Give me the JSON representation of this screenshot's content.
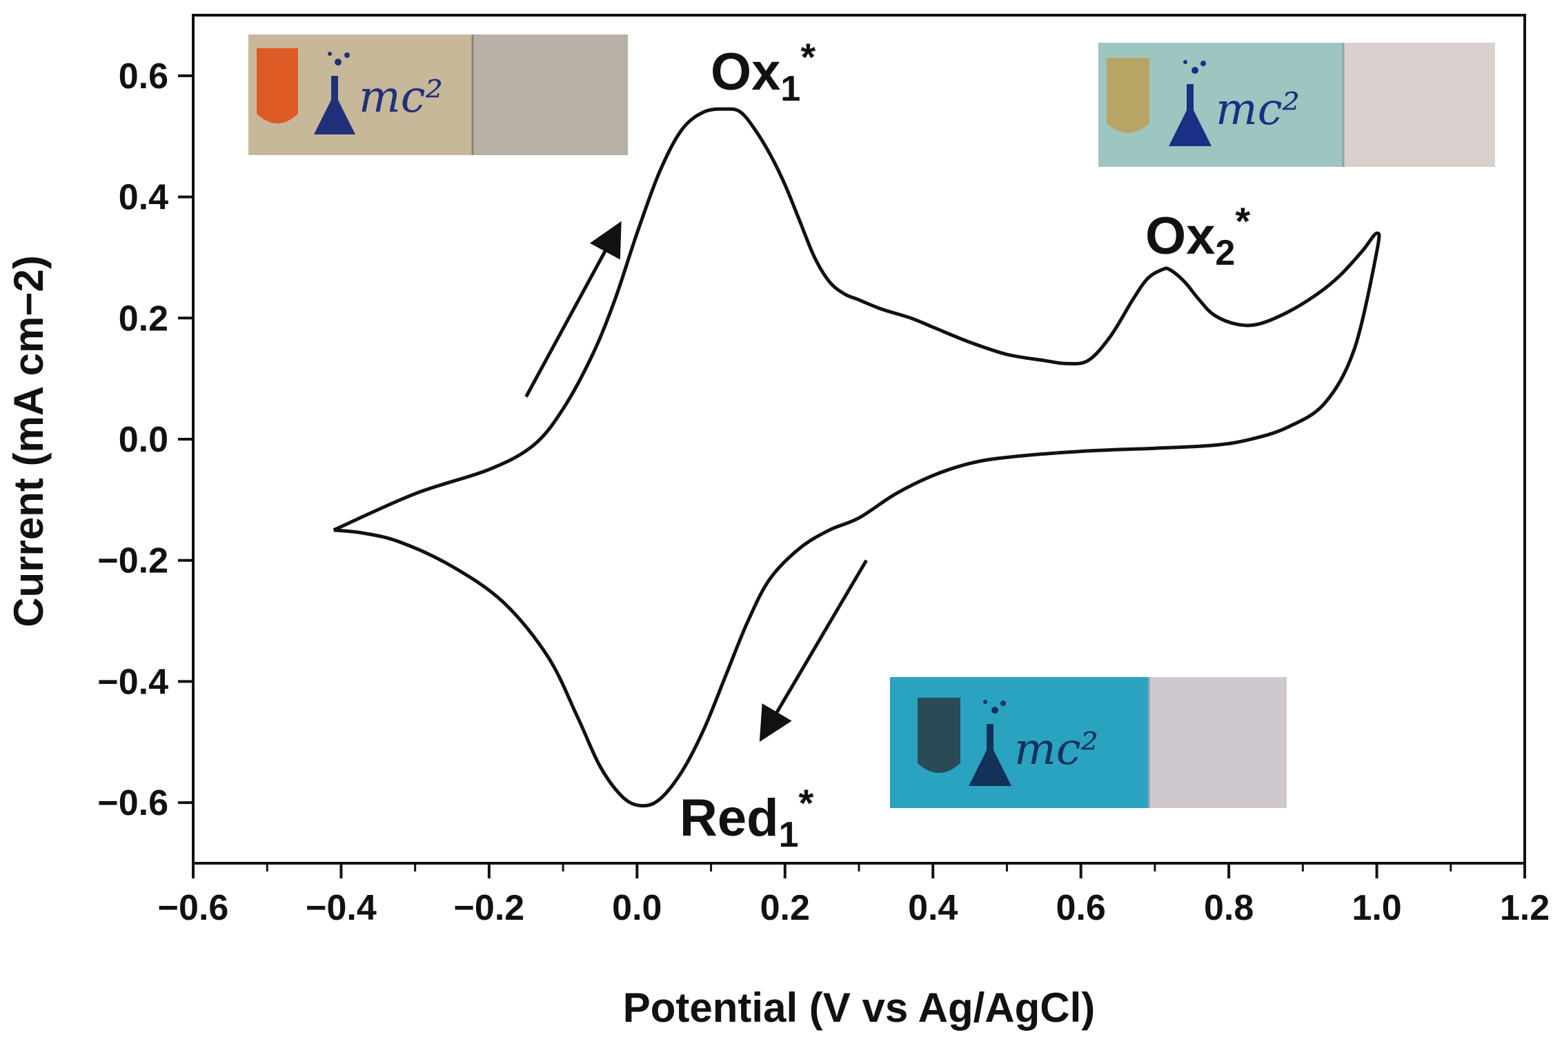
{
  "chart_data": {
    "type": "line",
    "xlabel": "Potential (V vs Ag/AgCl)",
    "ylabel": "Current (mA cm−2)",
    "xlim": [
      -0.6,
      1.2
    ],
    "ylim": [
      -0.7,
      0.7
    ],
    "x_ticks": [
      -0.6,
      -0.4,
      -0.2,
      0.0,
      0.2,
      0.4,
      0.6,
      0.8,
      1.0,
      1.2
    ],
    "x_tick_labels": [
      "−0.6",
      "−0.4",
      "−0.2",
      "0.0",
      "0.2",
      "0.4",
      "0.6",
      "0.8",
      "1.0",
      "1.2"
    ],
    "y_ticks": [
      -0.6,
      -0.4,
      -0.2,
      0.0,
      0.2,
      0.4,
      0.6
    ],
    "y_tick_labels": [
      "−0.6",
      "−0.4",
      "−0.2",
      "0.0",
      "0.2",
      "0.4",
      "0.6"
    ],
    "grid": false,
    "series": [
      {
        "style": "solid",
        "color": "#111111",
        "x": [
          -0.41,
          -0.3,
          -0.2,
          -0.14,
          -0.1,
          -0.06,
          -0.03,
          0.0,
          0.03,
          0.06,
          0.09,
          0.12,
          0.14,
          0.16,
          0.18,
          0.2,
          0.22,
          0.24,
          0.26,
          0.28,
          0.3,
          0.33,
          0.37,
          0.4,
          0.45,
          0.5,
          0.55,
          0.58,
          0.61,
          0.64,
          0.67,
          0.69,
          0.71,
          0.72,
          0.74,
          0.76,
          0.78,
          0.81,
          0.84,
          0.88,
          0.92,
          0.95,
          0.98,
          1.0,
          1.0,
          0.97,
          0.93,
          0.88,
          0.83,
          0.78,
          0.7,
          0.6,
          0.5,
          0.45,
          0.4,
          0.35,
          0.3,
          0.26,
          0.22,
          0.18,
          0.15,
          0.12,
          0.09,
          0.06,
          0.03,
          0.005,
          -0.02,
          -0.05,
          -0.08,
          -0.12,
          -0.18,
          -0.25,
          -0.32,
          -0.37,
          -0.41
        ],
        "y": [
          -0.15,
          -0.09,
          -0.05,
          -0.01,
          0.05,
          0.14,
          0.23,
          0.34,
          0.44,
          0.51,
          0.54,
          0.545,
          0.54,
          0.51,
          0.47,
          0.42,
          0.36,
          0.3,
          0.26,
          0.24,
          0.23,
          0.215,
          0.2,
          0.185,
          0.16,
          0.14,
          0.13,
          0.125,
          0.13,
          0.17,
          0.23,
          0.265,
          0.28,
          0.28,
          0.26,
          0.23,
          0.205,
          0.19,
          0.19,
          0.21,
          0.24,
          0.27,
          0.31,
          0.34,
          0.31,
          0.15,
          0.06,
          0.02,
          0.0,
          -0.01,
          -0.015,
          -0.02,
          -0.03,
          -0.04,
          -0.06,
          -0.09,
          -0.13,
          -0.15,
          -0.18,
          -0.23,
          -0.3,
          -0.39,
          -0.48,
          -0.55,
          -0.595,
          -0.605,
          -0.59,
          -0.54,
          -0.46,
          -0.36,
          -0.27,
          -0.21,
          -0.17,
          -0.155,
          -0.15
        ]
      }
    ],
    "annotations": [
      {
        "main": "Ox",
        "sub": "1",
        "sup": "*"
      },
      {
        "main": "Ox",
        "sub": "2",
        "sup": "*"
      },
      {
        "main": "Red",
        "sub": "1",
        "sup": "*"
      }
    ],
    "arrows": [
      {
        "from": [
          -0.15,
          0.07
        ],
        "to": [
          -0.03,
          0.34
        ],
        "meaning": "anodic scan"
      },
      {
        "from": [
          0.31,
          -0.2
        ],
        "to": [
          0.175,
          -0.48
        ],
        "meaning": "cathodic scan"
      }
    ]
  },
  "insets": [
    {
      "logo_text": "mc²",
      "shield_color": "#dd5a25",
      "strip_color": "#c7b89a",
      "blank_color": "#b8b0a6",
      "logo_color": "#20307a"
    },
    {
      "logo_text": "mc²",
      "shield_color": "#b8a565",
      "strip_color": "#9ec6c0",
      "blank_color": "#d7d0cc",
      "logo_color": "#1a2f85"
    },
    {
      "logo_text": "mc²",
      "shield_color": "#2a4a56",
      "strip_color": "#2aa3c0",
      "blank_color": "#cfc8cf",
      "logo_color": "#14315a"
    }
  ]
}
